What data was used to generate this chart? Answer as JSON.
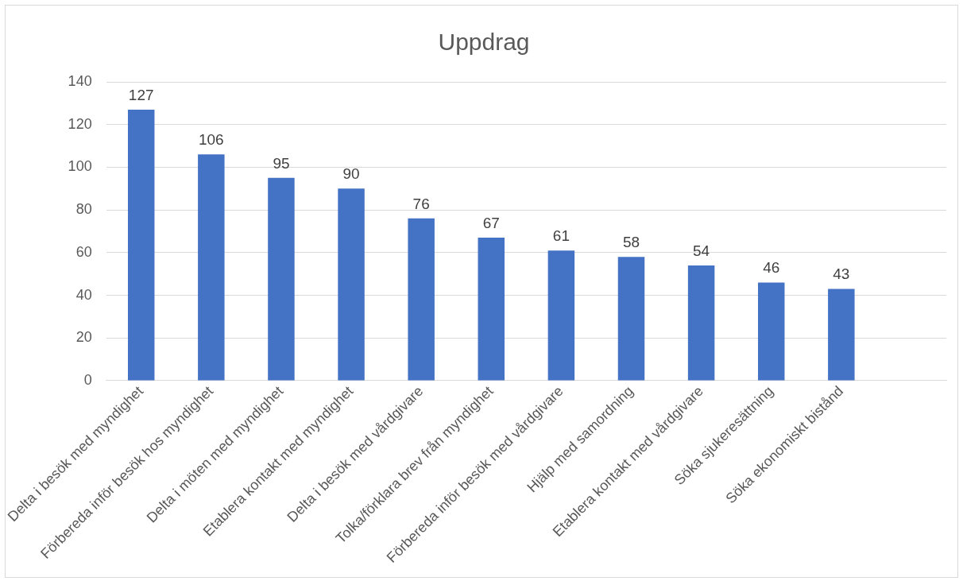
{
  "chart_data": {
    "type": "bar",
    "title": "Uppdrag",
    "categories": [
      "Delta i besök med myndighet",
      "Förbereda inför besök hos myndighet",
      "Delta i möten med myndighet",
      "Etablera kontakt med myndighet",
      "Delta i besök med vårdgivare",
      "Tolka/förklara brev från myndighet",
      "Förbereda inför besök med vårdgivare",
      "Hjälp med samordning",
      "Etablera kontakt med vårdgivare",
      "Söka sjukeresättning",
      "Söka ekonomiskt bistånd",
      null
    ],
    "values": [
      127,
      106,
      95,
      90,
      76,
      67,
      61,
      58,
      54,
      46,
      43,
      null
    ],
    "color": "#4472c4",
    "ylim": [
      0,
      140
    ],
    "yticks": [
      0,
      20,
      40,
      60,
      80,
      100,
      120,
      140
    ],
    "grid": "y",
    "data_labels": true
  }
}
